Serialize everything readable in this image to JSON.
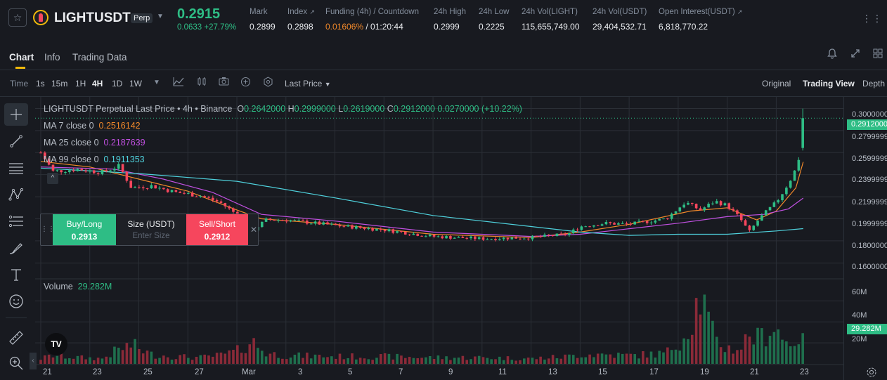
{
  "header": {
    "favorite_icon": "star-icon",
    "coin_icon": "light-coin-icon",
    "symbol": "LIGHTUSDT",
    "contract_badge": "Perp",
    "last_price": "0.2915",
    "change": "0.0633 +27.79%",
    "stats": [
      {
        "label": "Mark",
        "value": "0.2899",
        "value_color": "#eaecef"
      },
      {
        "label": "Index",
        "value": "0.2898",
        "value_color": "#eaecef",
        "has_link": true
      },
      {
        "label": "Funding (4h) / Countdown",
        "value_a": "0.01606%",
        "value_b": " / 01:20:44",
        "value_color": "#f0882a"
      },
      {
        "label": "24h High",
        "value": "0.2999",
        "value_color": "#eaecef"
      },
      {
        "label": "24h Low",
        "value": "0.2225",
        "value_color": "#eaecef"
      },
      {
        "label": "24h Vol(LIGHT)",
        "value": "115,655,749.00",
        "value_color": "#eaecef"
      },
      {
        "label": "24h Vol(USDT)",
        "value": "29,404,532.71",
        "value_color": "#eaecef"
      },
      {
        "label": "Open Interest(USDT)",
        "value": "6,818,770.22",
        "value_color": "#eaecef",
        "has_link": true
      }
    ],
    "link_glyph": "↗"
  },
  "tabs": [
    {
      "label": "Chart",
      "active": true
    },
    {
      "label": "Info",
      "active": false
    },
    {
      "label": "Trading Data",
      "active": false
    }
  ],
  "tab_icons": [
    "bell-icon",
    "expand-icon",
    "layout-grid-icon"
  ],
  "intervals": {
    "time_label": "Time",
    "items": [
      "1s",
      "15m",
      "1H",
      "4H",
      "1D",
      "1W"
    ],
    "active": "4H",
    "price_type": "Last Price",
    "view_modes": [
      "Original",
      "Trading View",
      "Depth"
    ],
    "active_view": "Trading View"
  },
  "tools": [
    "crosshair-icon",
    "trend-line-icon",
    "horizontal-lines-icon",
    "pattern-icon",
    "fib-icon",
    "brush-icon",
    "text-icon",
    "emoji-icon",
    "ruler-icon",
    "zoom-in-icon"
  ],
  "legend": {
    "title": "LIGHTUSDT Perpetual Last Price • 4h • Binance",
    "o_label": "O",
    "o": "0.2642000",
    "h_label": "H",
    "h": "0.2999000",
    "l_label": "L",
    "l": "0.2619000",
    "c_label": "C",
    "c": "0.2912000",
    "chg": "0.0270000 (+10.22%)",
    "ma": [
      {
        "label": "MA 7 close 0",
        "value": "0.2516142",
        "color": "#f0882a"
      },
      {
        "label": "MA 25 close 0",
        "value": "0.2187639",
        "color": "#c050e0"
      },
      {
        "label": "MA 99 close 0",
        "value": "0.1911353",
        "color": "#4fd1dc"
      }
    ],
    "volume_label": "Volume",
    "volume_value": "29.282M"
  },
  "order_widget": {
    "buy_label": "Buy/Long",
    "buy_price": "0.2913",
    "size_label": "Size (USDT)",
    "size_placeholder": "Enter Size",
    "sell_label": "Sell/Short",
    "sell_price": "0.2912"
  },
  "tradingview_logo": "TV",
  "colors": {
    "up": "#2ebd85",
    "down": "#f6465d",
    "vol_up": "#1f6f4d",
    "vol_down": "#8a2a38",
    "accent": "#f0b90b",
    "grid": "#2b2f36"
  },
  "chart_data": {
    "type": "candlestick",
    "price_axis": {
      "ticks": [
        "0.3000000",
        "0.2799999",
        "0.2599999",
        "0.2399999",
        "0.2199999",
        "0.1999999",
        "0.1800000",
        "0.1600000"
      ],
      "tick_values": [
        0.3,
        0.28,
        0.26,
        0.24,
        0.22,
        0.2,
        0.18,
        0.16
      ],
      "ylim": [
        0.1513,
        0.3092
      ],
      "current": "0.2912000",
      "current_value": 0.2912
    },
    "volume_axis": {
      "ticks": [
        "60M",
        "40M",
        "20M"
      ],
      "tick_values": [
        60,
        40,
        20
      ],
      "ylim": [
        0,
        75
      ],
      "current": "29.282M"
    },
    "x_axis": {
      "ticks": [
        "21",
        "23",
        "25",
        "27",
        "Mar",
        "3",
        "5",
        "7",
        "9",
        "11",
        "13",
        "15",
        "17",
        "19",
        "21",
        "23"
      ],
      "range_days": [
        0,
        31.25
      ]
    },
    "anchors": [
      [
        0,
        0.26,
        5
      ],
      [
        0.5,
        0.243,
        8
      ],
      [
        1.5,
        0.245,
        6
      ],
      [
        2.5,
        0.242,
        5
      ],
      [
        3.2,
        0.248,
        14
      ],
      [
        3.7,
        0.228,
        18
      ],
      [
        4.5,
        0.23,
        9
      ],
      [
        5.5,
        0.224,
        7
      ],
      [
        6.5,
        0.221,
        6
      ],
      [
        7.3,
        0.215,
        8
      ],
      [
        8.0,
        0.204,
        12
      ],
      [
        8.6,
        0.189,
        22
      ],
      [
        9.2,
        0.199,
        10
      ],
      [
        10,
        0.199,
        8
      ],
      [
        12,
        0.194,
        7
      ],
      [
        14,
        0.19,
        7
      ],
      [
        16,
        0.184,
        6
      ],
      [
        18,
        0.182,
        6
      ],
      [
        20,
        0.183,
        5
      ],
      [
        21.5,
        0.186,
        7
      ],
      [
        22,
        0.193,
        9
      ],
      [
        23,
        0.196,
        9
      ],
      [
        24,
        0.195,
        8
      ],
      [
        25.5,
        0.2,
        10
      ],
      [
        26.3,
        0.215,
        28
      ],
      [
        26.9,
        0.208,
        66
      ],
      [
        27.5,
        0.216,
        22
      ],
      [
        28,
        0.212,
        15
      ],
      [
        28.5,
        0.201,
        14
      ],
      [
        28.9,
        0.188,
        28
      ],
      [
        29.3,
        0.2,
        24
      ],
      [
        30,
        0.215,
        38
      ],
      [
        30.3,
        0.225,
        20
      ],
      [
        30.7,
        0.24,
        22
      ],
      [
        31,
        0.26,
        28
      ],
      [
        31.1,
        0.2912,
        29
      ]
    ],
    "ma_series": [
      {
        "name": "MA 7 close 0",
        "points": [
          [
            0,
            0.252
          ],
          [
            2,
            0.247
          ],
          [
            4,
            0.236
          ],
          [
            6,
            0.225
          ],
          [
            8,
            0.208
          ],
          [
            9,
            0.2
          ],
          [
            12,
            0.195
          ],
          [
            16,
            0.186
          ],
          [
            20,
            0.183
          ],
          [
            22,
            0.188
          ],
          [
            24,
            0.195
          ],
          [
            26.5,
            0.207
          ],
          [
            28,
            0.21
          ],
          [
            29.2,
            0.199
          ],
          [
            30,
            0.207
          ],
          [
            30.8,
            0.228
          ],
          [
            31.1,
            0.2516
          ]
        ]
      },
      {
        "name": "MA 25 close 0",
        "points": [
          [
            0,
            0.247
          ],
          [
            3,
            0.245
          ],
          [
            5,
            0.236
          ],
          [
            7,
            0.224
          ],
          [
            9,
            0.204
          ],
          [
            12,
            0.198
          ],
          [
            16,
            0.188
          ],
          [
            20,
            0.184
          ],
          [
            22,
            0.186
          ],
          [
            24,
            0.191
          ],
          [
            26,
            0.196
          ],
          [
            28,
            0.202
          ],
          [
            29.5,
            0.204
          ],
          [
            30.5,
            0.209
          ],
          [
            31.1,
            0.2188
          ]
        ]
      },
      {
        "name": "MA 99 close 0",
        "points": [
          [
            0,
            0.246
          ],
          [
            4,
            0.241
          ],
          [
            8,
            0.234
          ],
          [
            12,
            0.219
          ],
          [
            16,
            0.203
          ],
          [
            20,
            0.193
          ],
          [
            22,
            0.188
          ],
          [
            24,
            0.185
          ],
          [
            26,
            0.186
          ],
          [
            28,
            0.186
          ],
          [
            30,
            0.189
          ],
          [
            31.1,
            0.1911
          ]
        ]
      }
    ]
  }
}
